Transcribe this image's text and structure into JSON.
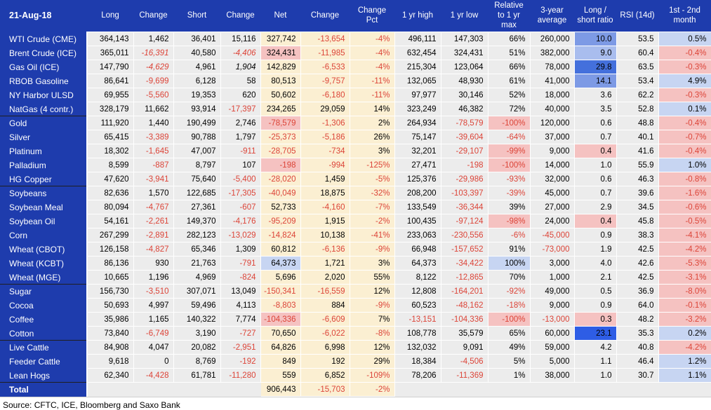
{
  "header": {
    "date": "21-Aug-18",
    "columns": [
      "Long",
      "Change",
      "Short",
      "Change",
      "Net",
      "Change",
      "Change Pct",
      "1 yr high",
      "1 yr low",
      "Relative to 1 yr max",
      "3-year average",
      "Long / short ratio",
      "RSI (14d)",
      "1st - 2nd month"
    ]
  },
  "source": "Source: CFTC, ICE, Bloomberg and Saxo Bank",
  "colors": {
    "header_bg": "#1E3CAD",
    "cell_gray": "#ECECEC",
    "cell_cream": "#FBEFD2",
    "highlight_pink": "#F5C2C1",
    "highlight_blue_pale": "#C7D5F2",
    "highlight_blue_soft": "#A9BDEE",
    "highlight_blue_med": "#7D9AE5",
    "highlight_blue_dark": "#4470DC",
    "highlight_blue_vivid": "#2E5DE5",
    "negative_text": "#DC4438"
  },
  "table": {
    "cream_columns": [
      4,
      5,
      6
    ],
    "rows": [
      {
        "name": "WTI Crude (CME)",
        "cells": [
          "364,143",
          "1,462",
          "36,401",
          "15,116",
          "327,742",
          "-13,654",
          "-4%",
          "496,111",
          "147,303",
          "66%",
          "260,000",
          {
            "v": "10.0",
            "bg": "blueMed"
          },
          "53.5",
          {
            "v": "0.5%",
            "bg": "bluePale"
          }
        ]
      },
      {
        "name": "Brent Crude (ICE)",
        "cells": [
          "365,011",
          {
            "v": "-16,391",
            "i": 1
          },
          "40,580",
          {
            "v": "-4,406",
            "i": 1
          },
          {
            "v": "324,431",
            "bg": "pink"
          },
          "-11,985",
          "-4%",
          "632,454",
          "324,431",
          "51%",
          "382,000",
          {
            "v": "9.0",
            "bg": "blueSoft"
          },
          "60.4",
          {
            "v": "-0.4%",
            "bg": "pink"
          }
        ]
      },
      {
        "name": "Gas Oil (ICE)",
        "cells": [
          "147,790",
          {
            "v": "-4,629",
            "i": 1
          },
          "4,961",
          {
            "v": "1,904",
            "i": 1
          },
          "142,829",
          "-6,533",
          "-4%",
          "215,304",
          "123,064",
          "66%",
          "78,000",
          {
            "v": "29.8",
            "bg": "blueDark"
          },
          "63.5",
          {
            "v": "-0.3%",
            "bg": "pink"
          }
        ]
      },
      {
        "name": "RBOB Gasoline",
        "cells": [
          "86,641",
          "-9,699",
          "6,128",
          "58",
          "80,513",
          "-9,757",
          "-11%",
          "132,065",
          "48,930",
          "61%",
          "41,000",
          {
            "v": "14.1",
            "bg": "blueMed"
          },
          "53.4",
          {
            "v": "4.9%",
            "bg": "bluePale"
          }
        ]
      },
      {
        "name": "NY Harbor ULSD",
        "cells": [
          "69,955",
          "-5,560",
          "19,353",
          "620",
          "50,602",
          "-6,180",
          "-11%",
          "97,977",
          "30,146",
          "52%",
          "18,000",
          "3.6",
          "62.2",
          {
            "v": "-0.3%",
            "bg": "pink"
          }
        ]
      },
      {
        "name": "NatGas (4 contr.)",
        "cells": [
          "328,179",
          "11,662",
          "93,914",
          "-17,397",
          "234,265",
          "29,059",
          "14%",
          "323,249",
          "46,382",
          "72%",
          "40,000",
          "3.5",
          "52.8",
          {
            "v": "0.1%",
            "bg": "bluePale"
          }
        ]
      },
      {
        "name": "Gold",
        "group_start": true,
        "cells": [
          "111,920",
          "1,440",
          "190,499",
          "2,746",
          {
            "v": "-78,579",
            "bg": "pink"
          },
          "-1,306",
          "2%",
          "264,934",
          "-78,579",
          {
            "v": "-100%",
            "bg": "pink"
          },
          "120,000",
          "0.6",
          "48.8",
          {
            "v": "-0.4%",
            "bg": "pink"
          }
        ]
      },
      {
        "name": "Silver",
        "cells": [
          "65,415",
          "-3,389",
          "90,788",
          "1,797",
          "-25,373",
          "-5,186",
          "26%",
          "75,147",
          "-39,604",
          "-64%",
          "37,000",
          "0.7",
          "40.1",
          {
            "v": "-0.7%",
            "bg": "pink"
          }
        ]
      },
      {
        "name": "Platinum",
        "cells": [
          "18,302",
          "-1,645",
          "47,007",
          "-911",
          "-28,705",
          "-734",
          "3%",
          "32,201",
          "-29,107",
          {
            "v": "-99%",
            "bg": "pink"
          },
          "9,000",
          {
            "v": "0.4",
            "bg": "pink"
          },
          "41.6",
          {
            "v": "-0.4%",
            "bg": "pink"
          }
        ]
      },
      {
        "name": "Palladium",
        "cells": [
          "8,599",
          "-887",
          "8,797",
          "107",
          {
            "v": "-198",
            "bg": "pink"
          },
          "-994",
          "-125%",
          "27,471",
          "-198",
          {
            "v": "-100%",
            "bg": "pink"
          },
          "14,000",
          "1.0",
          "55.9",
          {
            "v": "1.0%",
            "bg": "bluePale"
          }
        ]
      },
      {
        "name": "HG Copper",
        "cells": [
          "47,620",
          "-3,941",
          "75,640",
          "-5,400",
          "-28,020",
          "1,459",
          "-5%",
          "125,376",
          "-29,986",
          "-93%",
          "32,000",
          "0.6",
          "46.3",
          {
            "v": "-0.8%",
            "bg": "pink"
          }
        ]
      },
      {
        "name": "Soybeans",
        "group_start": true,
        "cells": [
          "82,636",
          "1,570",
          "122,685",
          "-17,305",
          "-40,049",
          "18,875",
          "-32%",
          "208,200",
          "-103,397",
          "-39%",
          "45,000",
          "0.7",
          "39.6",
          {
            "v": "-1.6%",
            "bg": "pink"
          }
        ]
      },
      {
        "name": "Soybean Meal",
        "cells": [
          "80,094",
          "-4,767",
          "27,361",
          "-607",
          "52,733",
          "-4,160",
          "-7%",
          "133,549",
          "-36,344",
          "39%",
          "27,000",
          "2.9",
          "34.5",
          {
            "v": "-0.6%",
            "bg": "pink"
          }
        ]
      },
      {
        "name": "Soybean Oil",
        "cells": [
          "54,161",
          "-2,261",
          "149,370",
          "-4,176",
          "-95,209",
          "1,915",
          "-2%",
          "100,435",
          "-97,124",
          {
            "v": "-98%",
            "bg": "pink"
          },
          "24,000",
          {
            "v": "0.4",
            "bg": "pink"
          },
          "45.8",
          {
            "v": "-0.5%",
            "bg": "pink"
          }
        ]
      },
      {
        "name": "Corn",
        "cells": [
          "267,299",
          "-2,891",
          "282,123",
          "-13,029",
          "-14,824",
          "10,138",
          "-41%",
          "233,063",
          "-230,556",
          "-6%",
          "-45,000",
          "0.9",
          "38.3",
          {
            "v": "-4.1%",
            "bg": "pink"
          }
        ]
      },
      {
        "name": "Wheat (CBOT)",
        "cells": [
          "126,158",
          "-4,827",
          "65,346",
          "1,309",
          "60,812",
          "-6,136",
          "-9%",
          "66,948",
          "-157,652",
          "91%",
          "-73,000",
          "1.9",
          "42.5",
          {
            "v": "-4.2%",
            "bg": "pink"
          }
        ]
      },
      {
        "name": "Wheat (KCBT)",
        "cells": [
          "86,136",
          "930",
          "21,763",
          "-791",
          {
            "v": "64,373",
            "bg": "bluePale"
          },
          "1,721",
          "3%",
          "64,373",
          "-34,422",
          {
            "v": "100%",
            "bg": "bluePale"
          },
          "3,000",
          "4.0",
          "42.6",
          {
            "v": "-5.3%",
            "bg": "pink"
          }
        ]
      },
      {
        "name": "Wheat (MGE)",
        "cells": [
          "10,665",
          "1,196",
          "4,969",
          "-824",
          "5,696",
          "2,020",
          "55%",
          "8,122",
          "-12,865",
          "70%",
          "1,000",
          "2.1",
          "42.5",
          {
            "v": "-3.1%",
            "bg": "pink"
          }
        ]
      },
      {
        "name": "Sugar",
        "group_start": true,
        "cells": [
          "156,730",
          "-3,510",
          "307,071",
          "13,049",
          "-150,341",
          "-16,559",
          "12%",
          "12,808",
          "-164,201",
          "-92%",
          "49,000",
          "0.5",
          "36.9",
          {
            "v": "-8.0%",
            "bg": "pink"
          }
        ]
      },
      {
        "name": "Cocoa",
        "cells": [
          "50,693",
          "4,997",
          "59,496",
          "4,113",
          "-8,803",
          "884",
          "-9%",
          "60,523",
          "-48,162",
          "-18%",
          "9,000",
          "0.9",
          "64.0",
          {
            "v": "-0.1%",
            "bg": "pink"
          }
        ]
      },
      {
        "name": "Coffee",
        "cells": [
          "35,986",
          "1,165",
          "140,322",
          "7,774",
          {
            "v": "-104,336",
            "bg": "pink"
          },
          "-6,609",
          "7%",
          "-13,151",
          "-104,336",
          {
            "v": "-100%",
            "bg": "pink"
          },
          "-13,000",
          {
            "v": "0.3",
            "bg": "pink"
          },
          "48.2",
          {
            "v": "-3.2%",
            "bg": "pink"
          }
        ]
      },
      {
        "name": "Cotton",
        "cells": [
          "73,840",
          "-6,749",
          "3,190",
          "-727",
          "70,650",
          "-6,022",
          "-8%",
          "108,778",
          "35,579",
          "65%",
          "60,000",
          {
            "v": "23.1",
            "bg": "blueVivid"
          },
          "35.3",
          {
            "v": "0.2%",
            "bg": "bluePale"
          }
        ]
      },
      {
        "name": "Live Cattle",
        "group_start": true,
        "cells": [
          "84,908",
          "4,047",
          "20,082",
          "-2,951",
          "64,826",
          "6,998",
          "12%",
          "132,032",
          "9,091",
          "49%",
          "59,000",
          "4.2",
          "40.8",
          {
            "v": "-4.2%",
            "bg": "pink"
          }
        ]
      },
      {
        "name": "Feeder Cattle",
        "cells": [
          "9,618",
          "0",
          "8,769",
          "-192",
          "849",
          "192",
          "29%",
          "18,384",
          "-4,506",
          "5%",
          "5,000",
          "1.1",
          "46.4",
          {
            "v": "1.2%",
            "bg": "bluePale"
          }
        ]
      },
      {
        "name": "Lean Hogs",
        "cells": [
          "62,340",
          "-4,428",
          "61,781",
          "-11,280",
          "559",
          "6,852",
          "-109%",
          "78,206",
          "-11,369",
          "1%",
          "38,000",
          "1.0",
          "30.7",
          {
            "v": "1.1%",
            "bg": "bluePale"
          }
        ]
      },
      {
        "name": "Total",
        "group_start": true,
        "total": true,
        "cells": [
          "",
          "",
          "",
          "",
          "906,443",
          "-15,703",
          "-2%",
          "",
          "",
          "",
          "",
          "",
          "",
          ""
        ]
      }
    ]
  }
}
